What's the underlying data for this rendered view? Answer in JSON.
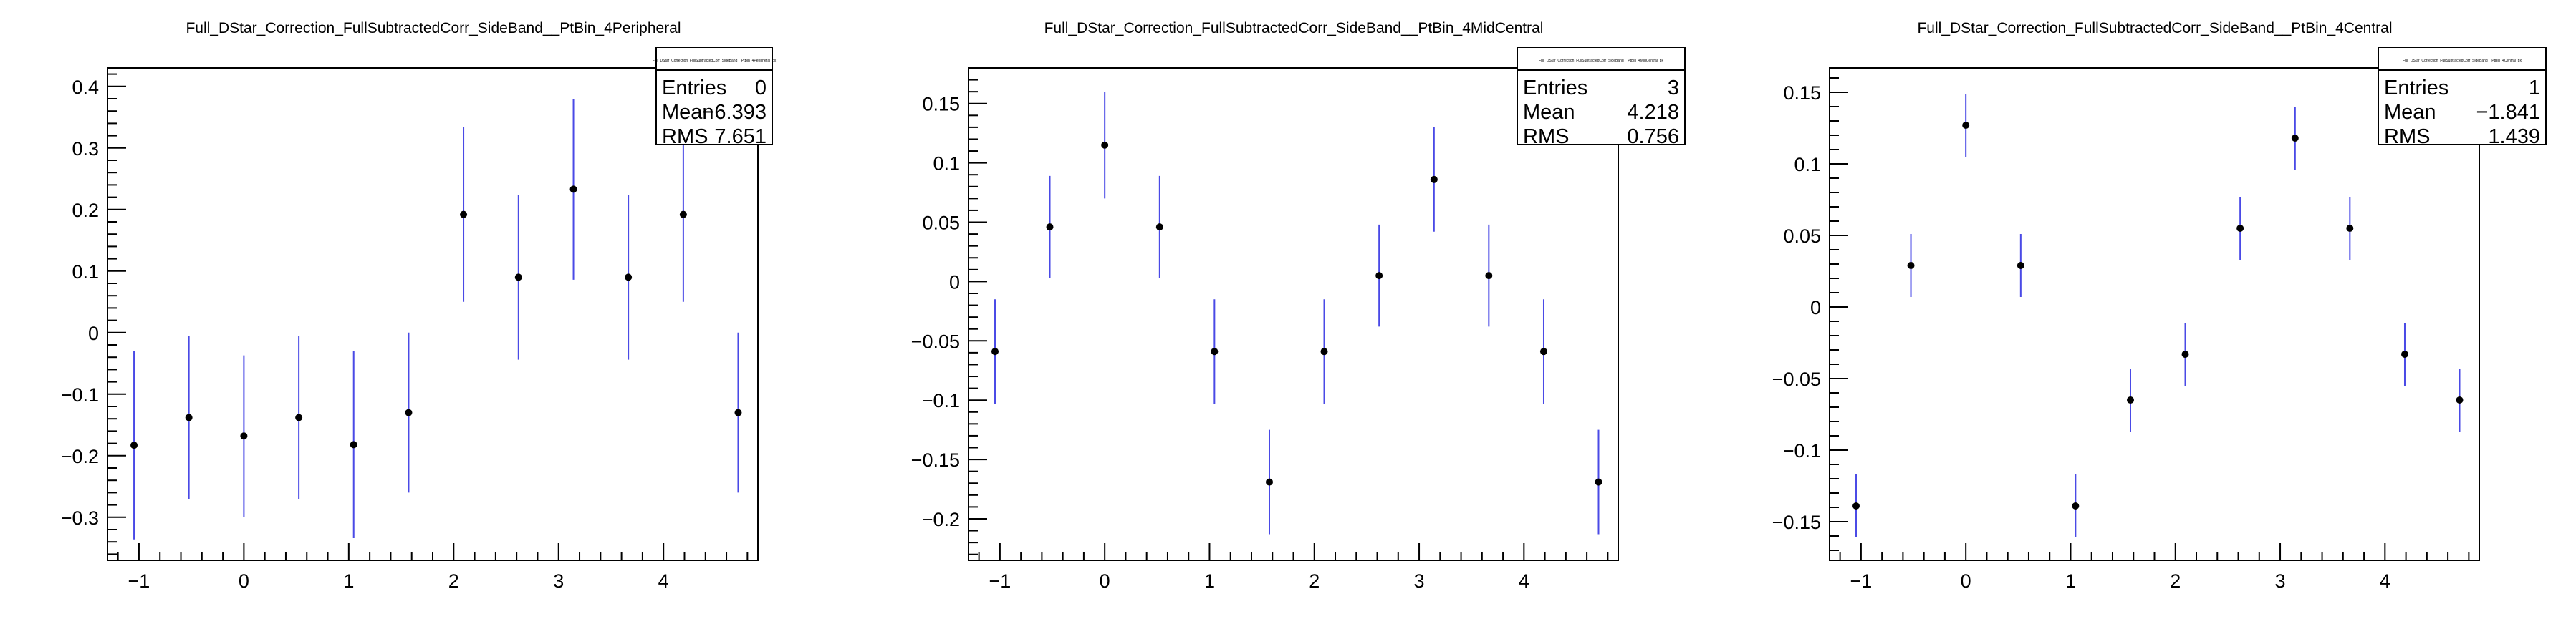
{
  "charts": [
    {
      "title": "Full_DStar_Correction_FullSubtractedCorr_SideBand__PtBin_4Peripheral",
      "stats_title": "Full_DStar_Correction_FullSubtractedCorr_SideBand__PtBin_4Peripheral_px",
      "stats": [
        {
          "label": "Entries",
          "value": "0"
        },
        {
          "label": "Mean",
          "value": "−6.393"
        },
        {
          "label": "RMS",
          "value": "7.651"
        }
      ]
    },
    {
      "title": "Full_DStar_Correction_FullSubtractedCorr_SideBand__PtBin_4MidCentral",
      "stats_title": "Full_DStar_Correction_FullSubtractedCorr_SideBand__PtBin_4MidCentral_px",
      "stats": [
        {
          "label": "Entries",
          "value": "3"
        },
        {
          "label": "Mean",
          "value": "4.218"
        },
        {
          "label": "RMS",
          "value": "0.756"
        }
      ]
    },
    {
      "title": "Full_DStar_Correction_FullSubtractedCorr_SideBand__PtBin_4Central",
      "stats_title": "Full_DStar_Correction_FullSubtractedCorr_SideBand__PtBin_4Central_px",
      "stats": [
        {
          "label": "Entries",
          "value": "1"
        },
        {
          "label": "Mean",
          "value": "−1.841"
        },
        {
          "label": "RMS",
          "value": "1.439"
        }
      ]
    }
  ],
  "chart_data": [
    {
      "type": "scatter",
      "title": "Full_DStar_Correction_FullSubtractedCorr_SideBand__PtBin_4Peripheral",
      "xlabel": "",
      "ylabel": "",
      "xlim": [
        -1.3,
        4.9
      ],
      "ylim": [
        -0.37,
        0.43
      ],
      "x": [
        -1.047,
        -0.524,
        0.0,
        0.524,
        1.047,
        1.571,
        2.094,
        2.618,
        3.142,
        3.665,
        4.189,
        4.712
      ],
      "y": [
        -0.183,
        -0.138,
        -0.168,
        -0.138,
        -0.182,
        -0.13,
        0.192,
        0.09,
        0.233,
        0.09,
        0.192,
        -0.13
      ],
      "yerr": [
        0.153,
        0.132,
        0.131,
        0.132,
        0.152,
        0.13,
        0.142,
        0.134,
        0.147,
        0.134,
        0.142,
        0.13
      ],
      "x_ticks": [
        -1,
        0,
        1,
        2,
        3,
        4
      ],
      "x_tick_labels": [
        "−1",
        "0",
        "1",
        "2",
        "3",
        "4"
      ],
      "y_ticks": [
        -0.3,
        -0.2,
        -0.1,
        0,
        0.1,
        0.2,
        0.3,
        0.4
      ],
      "y_tick_labels": [
        "−0.3",
        "−0.2",
        "−0.1",
        "0",
        "0.1",
        "0.2",
        "0.3",
        "0.4"
      ],
      "grid": false,
      "legend": "top-right",
      "marker_color": "#000000",
      "error_color": "#4a4ae6"
    },
    {
      "type": "scatter",
      "title": "Full_DStar_Correction_FullSubtractedCorr_SideBand__PtBin_4MidCentral",
      "xlabel": "",
      "ylabel": "",
      "xlim": [
        -1.3,
        4.9
      ],
      "ylim": [
        -0.235,
        0.18
      ],
      "x": [
        -1.047,
        -0.524,
        0.0,
        0.524,
        1.047,
        1.571,
        2.094,
        2.618,
        3.142,
        3.665,
        4.189,
        4.712
      ],
      "y": [
        -0.059,
        0.046,
        0.115,
        0.046,
        -0.059,
        -0.169,
        -0.059,
        0.005,
        0.086,
        0.005,
        -0.059,
        -0.169
      ],
      "yerr": [
        0.044,
        0.043,
        0.045,
        0.043,
        0.044,
        0.044,
        0.044,
        0.043,
        0.044,
        0.043,
        0.044,
        0.044
      ],
      "x_ticks": [
        -1,
        0,
        1,
        2,
        3,
        4
      ],
      "x_tick_labels": [
        "−1",
        "0",
        "1",
        "2",
        "3",
        "4"
      ],
      "y_ticks": [
        -0.2,
        -0.15,
        -0.1,
        -0.05,
        0,
        0.05,
        0.1,
        0.15
      ],
      "y_tick_labels": [
        "−0.2",
        "−0.15",
        "−0.1",
        "−0.05",
        "0",
        "0.05",
        "0.1",
        "0.15"
      ],
      "grid": false,
      "legend": "top-right",
      "marker_color": "#000000",
      "error_color": "#4a4ae6"
    },
    {
      "type": "scatter",
      "title": "Full_DStar_Correction_FullSubtractedCorr_SideBand__PtBin_4Central",
      "xlabel": "",
      "ylabel": "",
      "xlim": [
        -1.3,
        4.9
      ],
      "ylim": [
        -0.177,
        0.167
      ],
      "x": [
        -1.047,
        -0.524,
        0.0,
        0.524,
        1.047,
        1.571,
        2.094,
        2.618,
        3.142,
        3.665,
        4.189,
        4.712
      ],
      "y": [
        -0.139,
        0.029,
        0.127,
        0.029,
        -0.139,
        -0.065,
        -0.033,
        0.055,
        0.118,
        0.055,
        -0.033,
        -0.065
      ],
      "yerr": [
        0.022,
        0.022,
        0.022,
        0.022,
        0.022,
        0.022,
        0.022,
        0.022,
        0.022,
        0.022,
        0.022,
        0.022
      ],
      "x_ticks": [
        -1,
        0,
        1,
        2,
        3,
        4
      ],
      "x_tick_labels": [
        "−1",
        "0",
        "1",
        "2",
        "3",
        "4"
      ],
      "y_ticks": [
        -0.15,
        -0.1,
        -0.05,
        0,
        0.05,
        0.1,
        0.15
      ],
      "y_tick_labels": [
        "−0.15",
        "−0.1",
        "−0.05",
        "0",
        "0.05",
        "0.1",
        "0.15"
      ],
      "grid": false,
      "legend": "top-right",
      "marker_color": "#000000",
      "error_color": "#4a4ae6"
    }
  ]
}
